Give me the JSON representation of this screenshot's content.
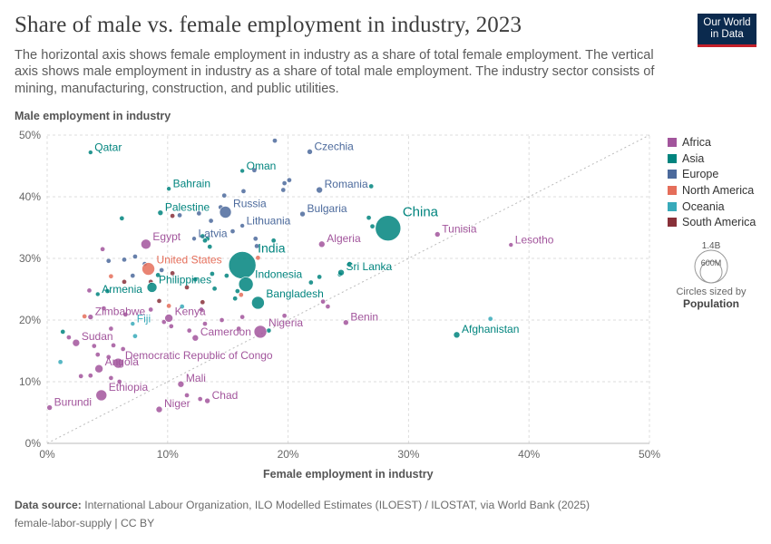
{
  "header": {
    "title": "Share of male vs. female employment in industry, 2023",
    "subtitle": "The horizontal axis shows female employment in industry as a share of total female employment. The vertical axis shows male employment in industry as a share of total male employment. The industry sector consists of mining, manufacturing, construction, and public utilities.",
    "logo_line1": "Our World",
    "logo_line2": "in Data"
  },
  "legend": {
    "items": [
      {
        "label": "Africa",
        "color": "#a2559c"
      },
      {
        "label": "Asia",
        "color": "#00847e"
      },
      {
        "label": "Europe",
        "color": "#4c6a9c"
      },
      {
        "label": "North America",
        "color": "#e56e5a"
      },
      {
        "label": "Oceania",
        "color": "#38aaba"
      },
      {
        "label": "South America",
        "color": "#883039"
      }
    ],
    "size_large": "1.4B",
    "size_small": "600M",
    "size_caption": "Circles sized by",
    "size_variable": "Population"
  },
  "footer": {
    "source_label": "Data source:",
    "source_text": "International Labour Organization, ILO Modelled Estimates (ILOEST) / ILOSTAT, via World Bank (2025)",
    "slug": "female-labor-supply | CC BY"
  },
  "chart_data": {
    "type": "scatter",
    "title": "Share of male vs. female employment in industry, 2023",
    "xlabel": "Female employment in industry",
    "ylabel": "Male employment in industry",
    "xlim": [
      0,
      50
    ],
    "ylim": [
      0,
      50
    ],
    "x_ticks": [
      "0%",
      "10%",
      "20%",
      "30%",
      "40%",
      "50%"
    ],
    "y_ticks": [
      "0%",
      "10%",
      "20%",
      "30%",
      "40%",
      "50%"
    ],
    "grid": true,
    "reference_line": "y = x (dotted diagonal)",
    "legend_position": "right",
    "colors": {
      "Africa": "#a2559c",
      "Asia": "#00847e",
      "Europe": "#4c6a9c",
      "North America": "#e56e5a",
      "Oceania": "#38aaba",
      "South America": "#883039"
    },
    "labeled_points": [
      {
        "label": "Qatar",
        "x": 3.6,
        "y": 47.2,
        "continent": "Asia"
      },
      {
        "label": "Czechia",
        "x": 21.8,
        "y": 47.3,
        "continent": "Europe"
      },
      {
        "label": "Oman",
        "x": 16.2,
        "y": 44.2,
        "continent": "Asia"
      },
      {
        "label": "Bahrain",
        "x": 10.1,
        "y": 41.3,
        "continent": "Asia"
      },
      {
        "label": "Romania",
        "x": 22.6,
        "y": 41.1,
        "continent": "Europe"
      },
      {
        "label": "Russia",
        "x": 14.8,
        "y": 37.5,
        "continent": "Europe"
      },
      {
        "label": "Palestine",
        "x": 9.4,
        "y": 37.4,
        "continent": "Asia"
      },
      {
        "label": "Bulgaria",
        "x": 21.2,
        "y": 37.2,
        "continent": "Europe"
      },
      {
        "label": "China",
        "x": 28.3,
        "y": 34.9,
        "continent": "Asia"
      },
      {
        "label": "Lithuania",
        "x": 16.2,
        "y": 35.3,
        "continent": "Europe"
      },
      {
        "label": "Tunisia",
        "x": 32.4,
        "y": 33.9,
        "continent": "Africa"
      },
      {
        "label": "Latvia",
        "x": 12.2,
        "y": 33.2,
        "continent": "Europe"
      },
      {
        "label": "Lesotho",
        "x": 38.5,
        "y": 32.2,
        "continent": "Africa"
      },
      {
        "label": "Egypt",
        "x": 8.2,
        "y": 32.3,
        "continent": "Africa"
      },
      {
        "label": "Algeria",
        "x": 22.8,
        "y": 32.3,
        "continent": "Africa"
      },
      {
        "label": "India",
        "x": 16.2,
        "y": 28.9,
        "continent": "Asia"
      },
      {
        "label": "United States",
        "x": 8.4,
        "y": 28.3,
        "continent": "North America"
      },
      {
        "label": "Sri Lanka",
        "x": 24.4,
        "y": 27.7,
        "continent": "Asia"
      },
      {
        "label": "Indonesia",
        "x": 16.5,
        "y": 25.8,
        "continent": "Asia"
      },
      {
        "label": "Philippines",
        "x": 8.7,
        "y": 25.3,
        "continent": "Asia"
      },
      {
        "label": "Armenia",
        "x": 4.2,
        "y": 24.2,
        "continent": "Asia"
      },
      {
        "label": "Bangladesh",
        "x": 17.5,
        "y": 22.8,
        "continent": "Asia"
      },
      {
        "label": "Zimbabwe",
        "x": 3.6,
        "y": 20.5,
        "continent": "Africa"
      },
      {
        "label": "Fiji",
        "x": 7.1,
        "y": 19.4,
        "continent": "Oceania"
      },
      {
        "label": "Kenya",
        "x": 10.1,
        "y": 20.3,
        "continent": "Africa"
      },
      {
        "label": "Benin",
        "x": 24.8,
        "y": 19.6,
        "continent": "Africa"
      },
      {
        "label": "Afghanistan",
        "x": 34.0,
        "y": 17.6,
        "continent": "Asia"
      },
      {
        "label": "Nigeria",
        "x": 17.7,
        "y": 18.1,
        "continent": "Africa"
      },
      {
        "label": "Cameroon",
        "x": 12.3,
        "y": 17.1,
        "continent": "Africa"
      },
      {
        "label": "Sudan",
        "x": 2.4,
        "y": 16.3,
        "continent": "Africa"
      },
      {
        "label": "Democratic Republic of Congo",
        "x": 5.9,
        "y": 13.0,
        "continent": "Africa"
      },
      {
        "label": "Angola",
        "x": 4.3,
        "y": 12.1,
        "continent": "Africa"
      },
      {
        "label": "Mali",
        "x": 11.1,
        "y": 9.6,
        "continent": "Africa"
      },
      {
        "label": "Ethiopia",
        "x": 4.5,
        "y": 7.8,
        "continent": "Africa"
      },
      {
        "label": "Chad",
        "x": 13.3,
        "y": 6.9,
        "continent": "Africa"
      },
      {
        "label": "Burundi",
        "x": 0.2,
        "y": 5.8,
        "continent": "Africa"
      },
      {
        "label": "Niger",
        "x": 9.3,
        "y": 5.5,
        "continent": "Africa"
      }
    ],
    "unlabeled_points": [
      [
        18.9,
        49.1,
        "Europe"
      ],
      [
        19.7,
        42.2,
        "Europe"
      ],
      [
        17.2,
        44.3,
        "Europe"
      ],
      [
        19.6,
        41.1,
        "Europe"
      ],
      [
        14.7,
        40.2,
        "Europe"
      ],
      [
        16.3,
        40.9,
        "Europe"
      ],
      [
        20.1,
        42.7,
        "Europe"
      ],
      [
        26.9,
        41.7,
        "Asia"
      ],
      [
        14.4,
        38.3,
        "Europe"
      ],
      [
        12.6,
        37.3,
        "Europe"
      ],
      [
        11.0,
        37.0,
        "Europe"
      ],
      [
        10.4,
        36.9,
        "South America"
      ],
      [
        6.2,
        36.5,
        "Asia"
      ],
      [
        13.6,
        36.1,
        "Europe"
      ],
      [
        26.7,
        36.6,
        "Asia"
      ],
      [
        27.0,
        35.2,
        "Asia"
      ],
      [
        15.4,
        34.4,
        "Europe"
      ],
      [
        12.9,
        33.6,
        "Asia"
      ],
      [
        13.3,
        33.2,
        "Asia"
      ],
      [
        17.3,
        33.2,
        "Europe"
      ],
      [
        18.8,
        32.9,
        "Asia"
      ],
      [
        13.1,
        32.9,
        "Asia"
      ],
      [
        13.5,
        31.9,
        "Asia"
      ],
      [
        17.4,
        32.0,
        "Europe"
      ],
      [
        4.6,
        31.5,
        "Africa"
      ],
      [
        17.5,
        30.1,
        "North America"
      ],
      [
        5.1,
        29.6,
        "Europe"
      ],
      [
        6.4,
        29.8,
        "Europe"
      ],
      [
        7.3,
        30.3,
        "Europe"
      ],
      [
        8.1,
        29.1,
        "Europe"
      ],
      [
        9.5,
        28.1,
        "Europe"
      ],
      [
        10.4,
        27.6,
        "South America"
      ],
      [
        7.1,
        27.2,
        "Europe"
      ],
      [
        5.3,
        27.1,
        "North America"
      ],
      [
        9.2,
        27.3,
        "Asia"
      ],
      [
        6.4,
        26.2,
        "South America"
      ],
      [
        8.6,
        26.2,
        "South America"
      ],
      [
        11.6,
        25.3,
        "South America"
      ],
      [
        12.3,
        26.6,
        "Asia"
      ],
      [
        13.7,
        27.5,
        "Asia"
      ],
      [
        14.9,
        27.2,
        "Asia"
      ],
      [
        22.6,
        27.0,
        "Asia"
      ],
      [
        24.3,
        27.4,
        "Asia"
      ],
      [
        25.1,
        29.1,
        "Asia"
      ],
      [
        21.9,
        26.1,
        "Asia"
      ],
      [
        13.9,
        25.1,
        "Asia"
      ],
      [
        15.8,
        24.7,
        "Asia"
      ],
      [
        3.5,
        24.8,
        "Africa"
      ],
      [
        5.0,
        24.7,
        "Asia"
      ],
      [
        9.3,
        23.1,
        "South America"
      ],
      [
        10.1,
        22.3,
        "North America"
      ],
      [
        12.9,
        22.9,
        "South America"
      ],
      [
        15.6,
        23.5,
        "Asia"
      ],
      [
        16.1,
        24.1,
        "North America"
      ],
      [
        22.9,
        23.0,
        "Africa"
      ],
      [
        23.3,
        22.2,
        "Africa"
      ],
      [
        3.1,
        20.6,
        "North America"
      ],
      [
        4.7,
        21.9,
        "Africa"
      ],
      [
        6.5,
        20.9,
        "Africa"
      ],
      [
        8.6,
        21.7,
        "Africa"
      ],
      [
        11.2,
        22.2,
        "Oceania"
      ],
      [
        12.8,
        21.7,
        "Africa"
      ],
      [
        14.5,
        20.0,
        "Africa"
      ],
      [
        16.2,
        20.5,
        "Africa"
      ],
      [
        19.7,
        20.7,
        "Africa"
      ],
      [
        36.8,
        20.2,
        "Oceania"
      ],
      [
        9.7,
        19.7,
        "Africa"
      ],
      [
        10.3,
        19.0,
        "Africa"
      ],
      [
        11.8,
        18.3,
        "Africa"
      ],
      [
        13.1,
        19.4,
        "Africa"
      ],
      [
        15.9,
        18.6,
        "Africa"
      ],
      [
        18.4,
        18.3,
        "Asia"
      ],
      [
        1.3,
        18.1,
        "Asia"
      ],
      [
        5.3,
        18.6,
        "Africa"
      ],
      [
        7.3,
        17.4,
        "Oceania"
      ],
      [
        1.8,
        17.2,
        "Africa"
      ],
      [
        3.9,
        15.8,
        "Africa"
      ],
      [
        5.5,
        15.9,
        "Africa"
      ],
      [
        6.3,
        15.3,
        "Africa"
      ],
      [
        4.2,
        14.4,
        "Africa"
      ],
      [
        5.1,
        14.0,
        "Africa"
      ],
      [
        1.1,
        13.2,
        "Oceania"
      ],
      [
        3.6,
        11.0,
        "Africa"
      ],
      [
        2.8,
        10.9,
        "Africa"
      ],
      [
        5.3,
        10.6,
        "Africa"
      ],
      [
        6.0,
        10.0,
        "Africa"
      ],
      [
        12.7,
        7.2,
        "Africa"
      ],
      [
        11.6,
        7.8,
        "Africa"
      ]
    ]
  }
}
